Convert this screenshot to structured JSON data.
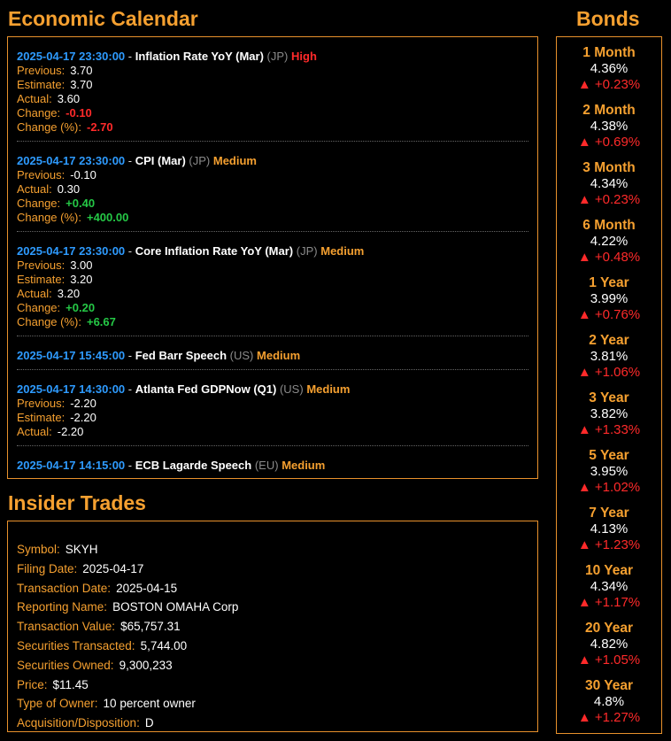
{
  "economic_calendar": {
    "title": "Economic Calendar",
    "events": [
      {
        "timestamp": "2025-04-17 23:30:00",
        "name": "Inflation Rate YoY (Mar)",
        "country": "(JP)",
        "importance": "High",
        "fields": [
          {
            "label": "Previous:",
            "value": "3.70",
            "style": "plain"
          },
          {
            "label": "Estimate:",
            "value": "3.70",
            "style": "plain"
          },
          {
            "label": "Actual:",
            "value": "3.60",
            "style": "plain"
          },
          {
            "label": "Change:",
            "value": "-0.10",
            "style": "neg"
          },
          {
            "label": "Change (%):",
            "value": "-2.70",
            "style": "neg"
          }
        ]
      },
      {
        "timestamp": "2025-04-17 23:30:00",
        "name": "CPI (Mar)",
        "country": "(JP)",
        "importance": "Medium",
        "fields": [
          {
            "label": "Previous:",
            "value": "-0.10",
            "style": "plain"
          },
          {
            "label": "Actual:",
            "value": "0.30",
            "style": "plain"
          },
          {
            "label": "Change:",
            "value": "+0.40",
            "style": "pos"
          },
          {
            "label": "Change (%):",
            "value": "+400.00",
            "style": "pos"
          }
        ]
      },
      {
        "timestamp": "2025-04-17 23:30:00",
        "name": "Core Inflation Rate YoY (Mar)",
        "country": "(JP)",
        "importance": "Medium",
        "fields": [
          {
            "label": "Previous:",
            "value": "3.00",
            "style": "plain"
          },
          {
            "label": "Estimate:",
            "value": "3.20",
            "style": "plain"
          },
          {
            "label": "Actual:",
            "value": "3.20",
            "style": "plain"
          },
          {
            "label": "Change:",
            "value": "+0.20",
            "style": "pos"
          },
          {
            "label": "Change (%):",
            "value": "+6.67",
            "style": "pos"
          }
        ]
      },
      {
        "timestamp": "2025-04-17 15:45:00",
        "name": "Fed Barr Speech",
        "country": "(US)",
        "importance": "Medium",
        "fields": []
      },
      {
        "timestamp": "2025-04-17 14:30:00",
        "name": "Atlanta Fed GDPNow (Q1)",
        "country": "(US)",
        "importance": "Medium",
        "fields": [
          {
            "label": "Previous:",
            "value": "-2.20",
            "style": "plain"
          },
          {
            "label": "Estimate:",
            "value": "-2.20",
            "style": "plain"
          },
          {
            "label": "Actual:",
            "value": "-2.20",
            "style": "plain"
          }
        ]
      },
      {
        "timestamp": "2025-04-17 14:15:00",
        "name": "ECB Lagarde Speech",
        "country": "(EU)",
        "importance": "Medium",
        "fields": []
      }
    ]
  },
  "insider_trades": {
    "title": "Insider Trades",
    "rows": [
      {
        "label": "Symbol:",
        "value": "SKYH"
      },
      {
        "label": "Filing Date:",
        "value": "2025-04-17"
      },
      {
        "label": "Transaction Date:",
        "value": "2025-04-15"
      },
      {
        "label": "Reporting Name:",
        "value": "BOSTON OMAHA Corp"
      },
      {
        "label": "Transaction Value:",
        "value": "$65,757.31"
      },
      {
        "label": "Securities Transacted:",
        "value": "5,744.00"
      },
      {
        "label": "Securities Owned:",
        "value": "9,300,233"
      },
      {
        "label": "Price:",
        "value": "$11.45"
      },
      {
        "label": "Type of Owner:",
        "value": "10 percent owner"
      },
      {
        "label": "Acquisition/Disposition:",
        "value": "D"
      }
    ]
  },
  "bonds": {
    "title": "Bonds",
    "items": [
      {
        "term": "1 Month",
        "rate": "4.36%",
        "change": "▲ +0.23%"
      },
      {
        "term": "2 Month",
        "rate": "4.38%",
        "change": "▲ +0.69%"
      },
      {
        "term": "3 Month",
        "rate": "4.34%",
        "change": "▲ +0.23%"
      },
      {
        "term": "6 Month",
        "rate": "4.22%",
        "change": "▲ +0.48%"
      },
      {
        "term": "1 Year",
        "rate": "3.99%",
        "change": "▲ +0.76%"
      },
      {
        "term": "2 Year",
        "rate": "3.81%",
        "change": "▲ +1.06%"
      },
      {
        "term": "3 Year",
        "rate": "3.82%",
        "change": "▲ +1.33%"
      },
      {
        "term": "5 Year",
        "rate": "3.95%",
        "change": "▲ +1.02%"
      },
      {
        "term": "7 Year",
        "rate": "4.13%",
        "change": "▲ +1.23%"
      },
      {
        "term": "10 Year",
        "rate": "4.34%",
        "change": "▲ +1.17%"
      },
      {
        "term": "20 Year",
        "rate": "4.82%",
        "change": "▲ +1.05%"
      },
      {
        "term": "30 Year",
        "rate": "4.8%",
        "change": "▲ +1.27%"
      }
    ]
  },
  "colors": {
    "accent": "#f5a030",
    "timestamp": "#2e9bff",
    "negative": "#ff2a2a",
    "positive": "#25c846",
    "country": "#8a8a8a",
    "background": "#000000"
  }
}
